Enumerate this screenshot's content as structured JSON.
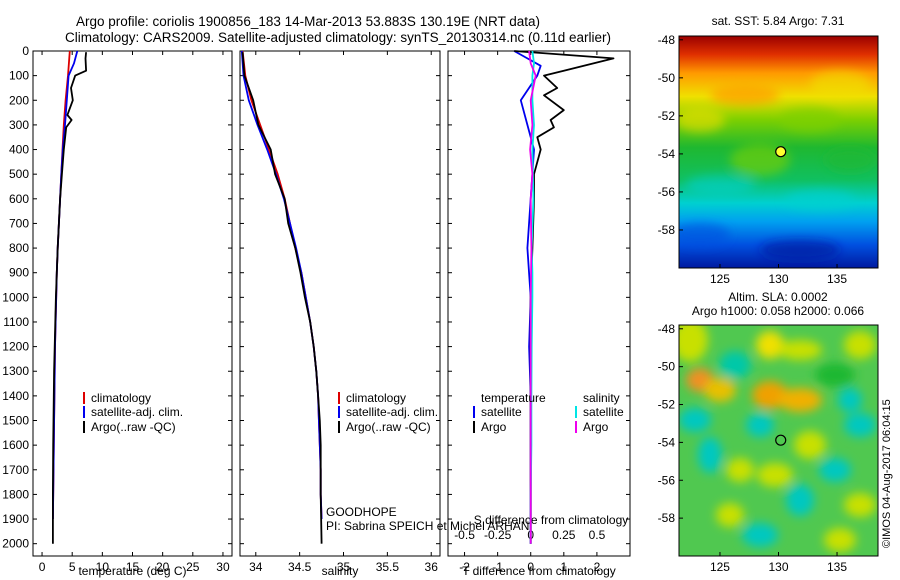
{
  "title": {
    "line1": "Argo profile: coriolis 1900856_183 14-Mar-2013 53.883S 130.19E (NRT data)",
    "line2": "Climatology: CARS2009. Satellite-adjusted climatology: synTS_20130314.nc (0.11d earlier)"
  },
  "colors": {
    "clim": "#dd0000",
    "sat": "#0000ee",
    "argo": "#000000",
    "sat_sal": "#00e5e5",
    "argo_sal": "#ee00ee"
  },
  "legend": {
    "clim": "climatology",
    "sat": "satellite-adj. clim.",
    "argo": "Argo(..raw -QC)"
  },
  "legend_diff": {
    "temp_head": "temperature",
    "sal_head": "salinity",
    "sat": "satellite",
    "argo": "Argo"
  },
  "annotation": {
    "line1": "GOODHOPE",
    "line2": "PI: Sabrina SPEICH et Michel ARHAN"
  },
  "map_sst_title": "sat. SST: 5.84 Argo: 7.31",
  "map_sla_title1": "Altim. SLA: 0.0002",
  "map_sla_title2": "Argo h1000: 0.058 h2000: 0.066",
  "credit": "©IMOS 04-Aug-2017 06:04:15",
  "chart_data": [
    {
      "type": "line",
      "name": "temperature",
      "xlabel": "temperature (deg C)",
      "xlim": [
        -1.5,
        31.5
      ],
      "xticks": [
        0,
        5,
        10,
        15,
        20,
        25,
        30
      ],
      "ylim": [
        0,
        2050
      ],
      "yticks": [
        0,
        100,
        200,
        300,
        400,
        500,
        600,
        700,
        800,
        900,
        1000,
        1100,
        1200,
        1300,
        1400,
        1500,
        1600,
        1700,
        1800,
        1900,
        2000
      ],
      "series": [
        {
          "name": "climatology",
          "color": "#dd0000",
          "x": [
            4.6,
            4.3,
            3.9,
            3.6,
            3.4,
            3.2,
            3.0,
            2.8,
            2.6,
            2.45,
            2.35,
            2.25,
            2.15,
            2.1,
            2.05,
            2.0,
            1.95,
            1.9,
            1.85,
            1.8
          ],
          "depth": [
            0,
            100,
            200,
            300,
            400,
            500,
            600,
            700,
            800,
            900,
            1000,
            1100,
            1200,
            1300,
            1400,
            1500,
            1600,
            1700,
            1800,
            1900
          ]
        },
        {
          "name": "satellite-adj. clim.",
          "color": "#0000ee",
          "x": [
            5.84,
            5.3,
            4.4,
            3.8,
            3.45,
            3.2,
            3.0,
            2.8,
            2.6,
            2.45,
            2.35,
            2.25,
            2.15,
            2.1,
            2.05,
            2.0,
            1.95,
            1.9,
            1.85,
            1.8
          ],
          "depth": [
            0,
            50,
            100,
            300,
            400,
            500,
            600,
            700,
            800,
            900,
            1000,
            1100,
            1200,
            1300,
            1400,
            1500,
            1600,
            1700,
            1800,
            1900
          ]
        },
        {
          "name": "Argo(..raw -QC)",
          "color": "#000000",
          "x": [
            7.3,
            7.2,
            7.3,
            5.5,
            4.8,
            5.1,
            4.5,
            4.2,
            4.9,
            4.0,
            3.6,
            3.3,
            3.0,
            2.8,
            2.6,
            2.45,
            2.3,
            2.2,
            2.1,
            2.0,
            1.95,
            1.9,
            1.85,
            1.8,
            1.8
          ],
          "depth": [
            5,
            30,
            80,
            100,
            150,
            200,
            240,
            260,
            280,
            310,
            400,
            500,
            600,
            700,
            800,
            900,
            1000,
            1100,
            1200,
            1300,
            1400,
            1500,
            1600,
            1800,
            2000
          ]
        }
      ]
    },
    {
      "type": "line",
      "name": "salinity",
      "xlabel": "salinity",
      "xlim": [
        33.82,
        36.1
      ],
      "xticks": [
        34,
        34.5,
        35,
        35.5,
        36
      ],
      "ylim": [
        0,
        2050
      ],
      "series": [
        {
          "name": "climatology",
          "color": "#dd0000",
          "x": [
            33.85,
            33.88,
            33.95,
            34.05,
            34.15,
            34.25,
            34.33,
            34.39,
            34.45,
            34.52,
            34.57,
            34.62,
            34.66,
            34.69,
            34.71,
            34.72,
            34.73,
            34.74,
            34.74,
            34.75
          ],
          "depth": [
            0,
            100,
            200,
            300,
            400,
            500,
            600,
            700,
            800,
            900,
            1000,
            1100,
            1200,
            1300,
            1400,
            1500,
            1600,
            1700,
            1800,
            1900
          ]
        },
        {
          "name": "satellite-adj. clim.",
          "color": "#0000ee",
          "x": [
            33.84,
            33.86,
            33.92,
            34.02,
            34.13,
            34.23,
            34.32,
            34.39,
            34.46,
            34.52,
            34.57,
            34.62,
            34.66,
            34.69,
            34.71,
            34.72,
            34.73,
            34.74,
            34.74,
            34.75
          ],
          "depth": [
            0,
            100,
            200,
            300,
            400,
            500,
            600,
            700,
            800,
            900,
            1000,
            1100,
            1200,
            1300,
            1400,
            1500,
            1600,
            1700,
            1800,
            1900
          ]
        },
        {
          "name": "Argo(..raw -QC)",
          "color": "#000000",
          "x": [
            33.85,
            33.87,
            33.97,
            34.03,
            34.17,
            34.22,
            34.33,
            34.37,
            34.45,
            34.51,
            34.56,
            34.62,
            34.66,
            34.69,
            34.71,
            34.73,
            34.74,
            34.74,
            34.75
          ],
          "depth": [
            5,
            100,
            200,
            300,
            400,
            500,
            600,
            700,
            800,
            900,
            1000,
            1100,
            1200,
            1300,
            1400,
            1500,
            1600,
            1800,
            2000
          ]
        }
      ]
    },
    {
      "type": "line",
      "name": "difference from climatology",
      "xlabel": "T difference from climatology",
      "xlabel_top": "S difference from climatology",
      "xlim": [
        -2.5,
        3.0
      ],
      "xticks": [
        -2,
        -1,
        0,
        1,
        2
      ],
      "xticks_top": [
        -0.5,
        -0.25,
        0,
        0.25,
        0.5
      ],
      "ylim": [
        0,
        2050
      ],
      "series": [
        {
          "name": "temperature satellite",
          "color": "#0000ee",
          "x": [
            -0.5,
            -0.1,
            0.3,
            0.2,
            -0.3,
            -0.1,
            0.1,
            0,
            -0.1,
            0,
            -0.05,
            0,
            0,
            0,
            0,
            0,
            0
          ],
          "depth": [
            0,
            30,
            60,
            100,
            200,
            300,
            400,
            600,
            800,
            1000,
            1200,
            1400,
            1600,
            1700,
            1800,
            1900,
            2000
          ]
        },
        {
          "name": "temperature Argo",
          "color": "#000000",
          "x": [
            -0.5,
            2.5,
            1.0,
            0.4,
            0.8,
            0.4,
            1.0,
            0.6,
            0.7,
            0.2,
            0.3,
            0.1,
            0.1,
            0.05,
            0,
            0,
            0,
            0
          ],
          "depth": [
            0,
            30,
            80,
            100,
            150,
            180,
            240,
            280,
            310,
            350,
            400,
            500,
            600,
            800,
            1000,
            1400,
            1800,
            2000
          ]
        },
        {
          "name": "salinity satellite",
          "color": "#00e5e5",
          "x": [
            0.05,
            0.1,
            0.05,
            0.05,
            0.1,
            0.05,
            0.08,
            0.03,
            0.05,
            0.05,
            0.03,
            0.02,
            0.02,
            0,
            0
          ],
          "depth": [
            0,
            50,
            100,
            200,
            300,
            400,
            600,
            800,
            900,
            1000,
            1200,
            1400,
            1600,
            1800,
            2000
          ]
        },
        {
          "name": "salinity Argo",
          "color": "#ee00ee",
          "x": [
            -0.05,
            0,
            0.15,
            0,
            0.05,
            -0.02,
            0.05,
            0,
            0.02,
            0,
            0,
            0,
            0
          ],
          "depth": [
            0,
            50,
            100,
            200,
            300,
            400,
            500,
            600,
            800,
            1000,
            1400,
            1800,
            2000
          ]
        }
      ]
    },
    {
      "type": "heatmap",
      "name": "sat. SST map",
      "xticks": [
        125,
        130,
        135
      ],
      "yticks": [
        -48,
        -50,
        -52,
        -54,
        -56,
        -58
      ],
      "xlim": [
        121.5,
        138.5
      ],
      "ylim": [
        -60,
        -47.8
      ],
      "argo_position": {
        "lon": 130.19,
        "lat": -53.883
      }
    },
    {
      "type": "heatmap",
      "name": "Altim. SLA map",
      "xticks": [
        125,
        130,
        135
      ],
      "yticks": [
        -48,
        -50,
        -52,
        -54,
        -56,
        -58
      ],
      "xlim": [
        121.5,
        138.5
      ],
      "ylim": [
        -60,
        -47.8
      ],
      "argo_position": {
        "lon": 130.19,
        "lat": -53.883
      }
    }
  ]
}
